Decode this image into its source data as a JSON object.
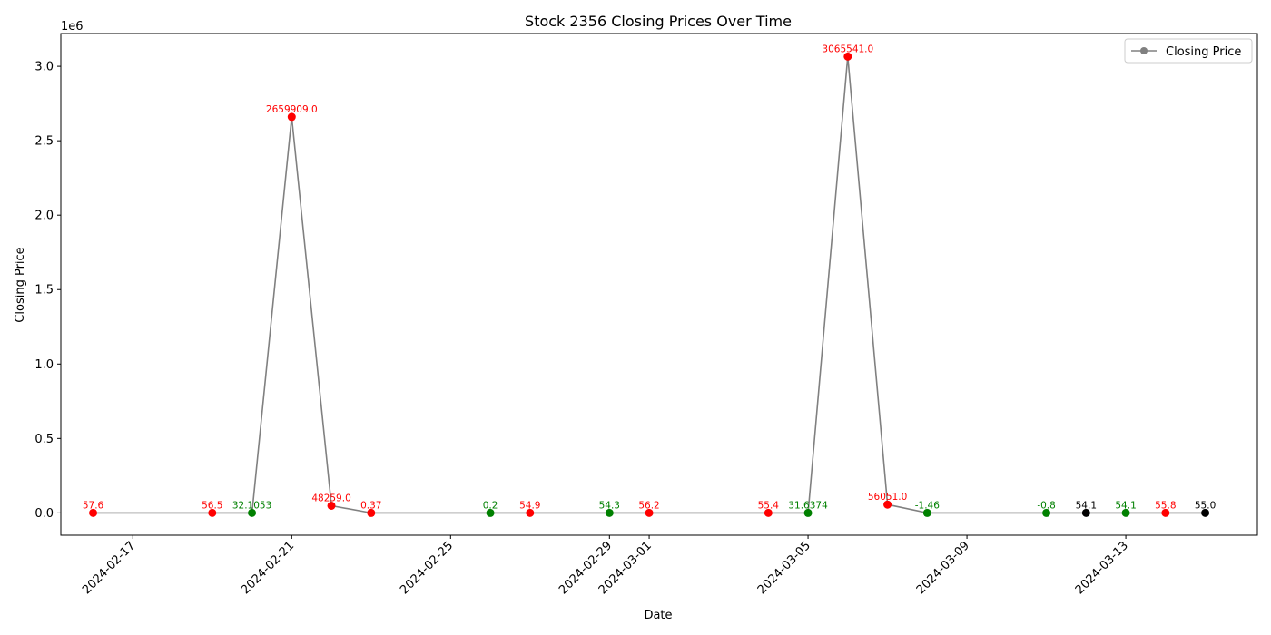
{
  "chart_data": {
    "type": "line",
    "title": "Stock 2356 Closing Prices Over Time",
    "xlabel": "Date",
    "ylabel": "Closing Price",
    "y_offset_text": "1e6",
    "y_scale": 1000000,
    "ylim": [
      -150000,
      3220000
    ],
    "xlim": [
      "2024-02-15T04:30",
      "2024-03-16T07:30"
    ],
    "x_ticks": [
      "2024-02-17",
      "2024-02-21",
      "2024-02-25",
      "2024-02-29",
      "2024-03-01",
      "2024-03-05",
      "2024-03-09",
      "2024-03-13"
    ],
    "y_ticks": [
      "0.0",
      "0.5",
      "1.0",
      "1.5",
      "2.0",
      "2.5",
      "3.0"
    ],
    "y_tick_values": [
      0,
      500000,
      1000000,
      1500000,
      2000000,
      2500000,
      3000000
    ],
    "grid": false,
    "legend_position": "top-right",
    "line_color": "#808080",
    "colors": {
      "red": "#ff0000",
      "green": "#008000",
      "black": "#000000"
    },
    "series": [
      {
        "name": "Closing Price",
        "color": "#808080"
      }
    ],
    "points": [
      {
        "x": "2024-02-16",
        "y": 57.6,
        "label": "57.6",
        "color": "red"
      },
      {
        "x": "2024-02-19",
        "y": 56.5,
        "label": "56.5",
        "color": "red"
      },
      {
        "x": "2024-02-20",
        "y": 32.1053,
        "label": "32.1053",
        "color": "green"
      },
      {
        "x": "2024-02-21",
        "y": 2659909.0,
        "label": "2659909.0",
        "color": "red"
      },
      {
        "x": "2024-02-22",
        "y": 48259.0,
        "label": "48259.0",
        "color": "red"
      },
      {
        "x": "2024-02-23",
        "y": 0.37,
        "label": "0.37",
        "color": "red"
      },
      {
        "x": "2024-02-26",
        "y": 0.2,
        "label": "0.2",
        "color": "green"
      },
      {
        "x": "2024-02-27",
        "y": 54.9,
        "label": "54.9",
        "color": "red"
      },
      {
        "x": "2024-02-29",
        "y": 54.3,
        "label": "54.3",
        "color": "green"
      },
      {
        "x": "2024-03-01",
        "y": 56.2,
        "label": "56.2",
        "color": "red"
      },
      {
        "x": "2024-03-04",
        "y": 55.4,
        "label": "55.4",
        "color": "red"
      },
      {
        "x": "2024-03-05",
        "y": 31.6374,
        "label": "31.6374",
        "color": "green"
      },
      {
        "x": "2024-03-06",
        "y": 3065541.0,
        "label": "3065541.0",
        "color": "red"
      },
      {
        "x": "2024-03-07",
        "y": 56051.0,
        "label": "56051.0",
        "color": "red"
      },
      {
        "x": "2024-03-08",
        "y": -1.46,
        "label": "-1.46",
        "color": "green"
      },
      {
        "x": "2024-03-11",
        "y": -0.8,
        "label": "-0.8",
        "color": "green"
      },
      {
        "x": "2024-03-12",
        "y": 54.1,
        "label": "54.1",
        "color": "black"
      },
      {
        "x": "2024-03-13",
        "y": 54.1,
        "label": "54.1",
        "color": "green"
      },
      {
        "x": "2024-03-14",
        "y": 55.8,
        "label": "55.8",
        "color": "red"
      },
      {
        "x": "2024-03-15",
        "y": 55.0,
        "label": "55.0",
        "color": "black"
      }
    ]
  }
}
